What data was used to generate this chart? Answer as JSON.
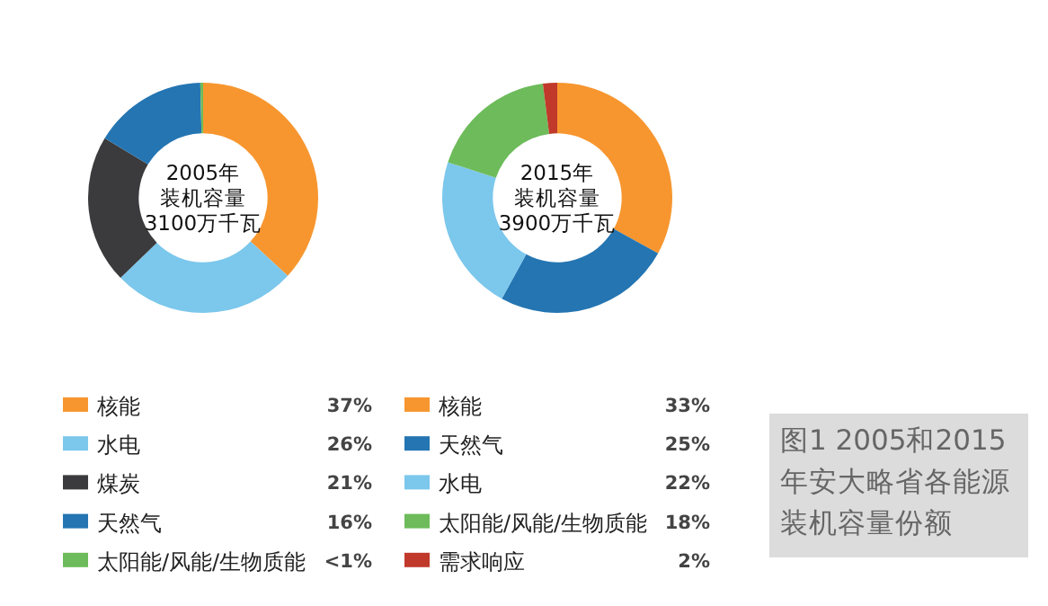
{
  "chart_data": [
    {
      "type": "donut",
      "title": "2005年",
      "subtitle": "装机容量",
      "annotations": [
        "3100万千瓦"
      ],
      "categories": [
        "核能",
        "水电",
        "煤炭",
        "天然气",
        "太阳能/风能/生物质能"
      ],
      "values": [
        37,
        26,
        21,
        16,
        0.4
      ],
      "value_labels": [
        "37%",
        "26%",
        "21%",
        "16%",
        "<1%"
      ],
      "colors": [
        "#f7962f",
        "#7cc7ec",
        "#3b3b3d",
        "#2475b2",
        "#6dbb5a"
      ],
      "legend": "bottom"
    },
    {
      "type": "donut",
      "title": "2015年",
      "subtitle": "装机容量",
      "annotations": [
        "3900万千瓦",
        "图1 2005和2015年安大略省各能源装机容量份额"
      ],
      "categories": [
        "核能",
        "天然气",
        "水电",
        "太阳能/风能/生物质能",
        "需求响应"
      ],
      "values": [
        33,
        25,
        22,
        18,
        2
      ],
      "value_labels": [
        "33%",
        "25%",
        "22%",
        "18%",
        "2%"
      ],
      "colors": [
        "#f7962f",
        "#2475b2",
        "#7cc7ec",
        "#6dbb5a",
        "#c0392b"
      ],
      "legend": "bottom"
    }
  ]
}
